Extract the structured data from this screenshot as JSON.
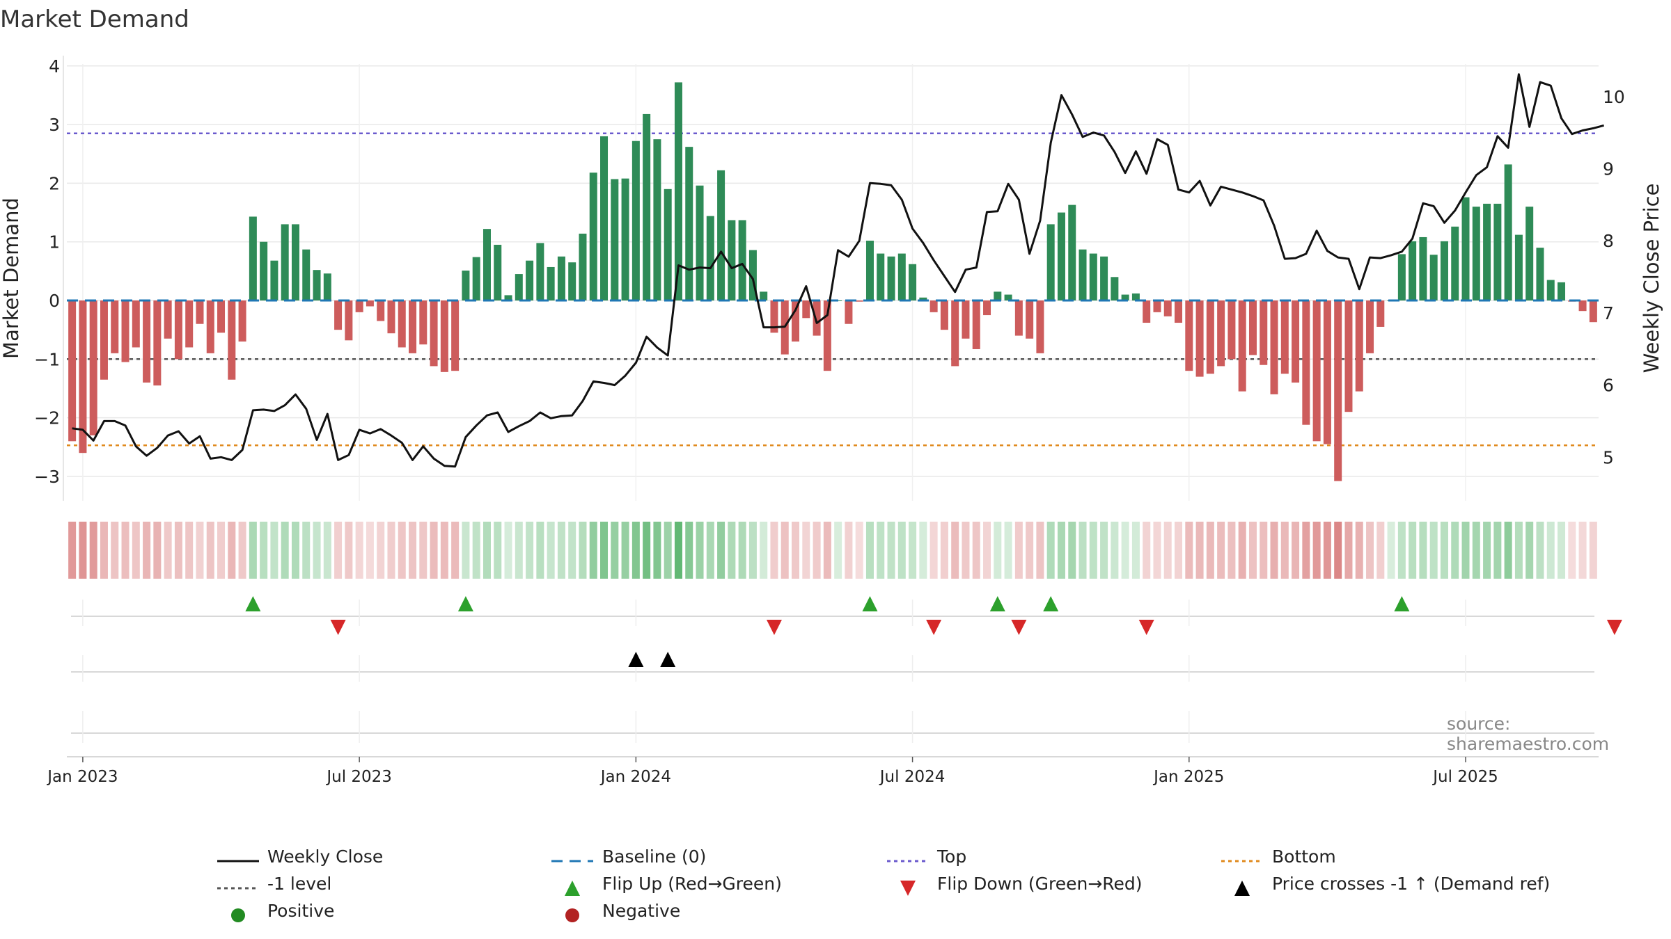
{
  "title": "Market Demand",
  "source": "source: sharemaestro.com",
  "colors": {
    "positive": "#2e8b57",
    "negative": "#cd5c5c",
    "close": "#111111",
    "baseline": "#1f77b4",
    "top": "#6a5acd",
    "bottom": "#e08a1e",
    "minus1": "#555555",
    "flip_up": "#2ca02c",
    "flip_down": "#d62728",
    "cross": "#000000",
    "pos_marker": "#228b22",
    "neg_marker": "#b22222"
  },
  "chart_data": {
    "type": "bar",
    "title": "Market Demand",
    "ylabel": "Market Demand",
    "y2label": "Weekly Close Price",
    "ylim": [
      -3.4,
      4.0
    ],
    "y2lim": [
      4.5,
      10.5
    ],
    "yticks": [
      -3,
      -2,
      -1,
      0,
      1,
      2,
      3,
      4
    ],
    "y2ticks": [
      5,
      6,
      7,
      8,
      9,
      10
    ],
    "xticks": [
      {
        "label": "Jan 2023",
        "week": 1
      },
      {
        "label": "Jul 2023",
        "week": 27
      },
      {
        "label": "Jan 2024",
        "week": 53
      },
      {
        "label": "Jul 2024",
        "week": 79
      },
      {
        "label": "Jan 2025",
        "week": 105
      },
      {
        "label": "Jul 2025",
        "week": 131
      }
    ],
    "levels": {
      "baseline": 0,
      "minus1": -1,
      "top": 2.85,
      "bottom": -2.47
    },
    "demand": [
      -2.4,
      -2.6,
      -2.3,
      -1.35,
      -0.9,
      -1.05,
      -0.8,
      -1.4,
      -1.45,
      -0.65,
      -1.0,
      -0.8,
      -0.4,
      -0.9,
      -0.55,
      -1.35,
      -0.7,
      1.43,
      1.0,
      0.68,
      1.3,
      1.3,
      0.87,
      0.52,
      0.46,
      -0.5,
      -0.68,
      -0.2,
      -0.1,
      -0.35,
      -0.56,
      -0.8,
      -0.9,
      -0.75,
      -1.12,
      -1.22,
      -1.2,
      0.51,
      0.74,
      1.22,
      0.95,
      0.09,
      0.45,
      0.68,
      0.98,
      0.57,
      0.75,
      0.65,
      1.14,
      2.18,
      2.8,
      2.07,
      2.08,
      2.72,
      3.18,
      2.75,
      1.9,
      3.72,
      2.62,
      1.96,
      1.44,
      2.22,
      1.37,
      1.37,
      0.86,
      0.15,
      -0.55,
      -0.92,
      -0.7,
      -0.3,
      -0.6,
      -1.2,
      0.0,
      -0.4,
      -0.02,
      1.02,
      0.8,
      0.75,
      0.8,
      0.62,
      0.05,
      -0.2,
      -0.5,
      -1.12,
      -0.65,
      -0.83,
      -0.25,
      0.15,
      0.1,
      -0.6,
      -0.65,
      -0.9,
      1.3,
      1.5,
      1.63,
      0.87,
      0.8,
      0.75,
      0.4,
      0.1,
      0.12,
      -0.38,
      -0.2,
      -0.27,
      -0.38,
      -1.2,
      -1.3,
      -1.25,
      -1.12,
      -1.0,
      -1.55,
      -0.93,
      -1.1,
      -1.6,
      -1.25,
      -1.4,
      -2.12,
      -2.4,
      -2.45,
      -3.08,
      -1.9,
      -1.55,
      -0.9,
      -0.45,
      0.0,
      0.79,
      1.01,
      1.08,
      0.78,
      1.01,
      1.26,
      1.76,
      1.6,
      1.65,
      1.65,
      2.32,
      1.12,
      1.6,
      0.9,
      0.35,
      0.31,
      -0.02,
      -0.18,
      -0.37
    ],
    "close": [
      5.4,
      5.38,
      5.23,
      5.5,
      5.5,
      5.44,
      5.15,
      5.02,
      5.13,
      5.3,
      5.36,
      5.19,
      5.29,
      4.98,
      5.0,
      4.96,
      5.1,
      5.65,
      5.66,
      5.64,
      5.72,
      5.87,
      5.67,
      5.24,
      5.6,
      4.96,
      5.03,
      5.38,
      5.33,
      5.39,
      5.3,
      5.2,
      4.96,
      5.15,
      4.98,
      4.88,
      4.87,
      5.28,
      5.44,
      5.58,
      5.62,
      5.35,
      5.43,
      5.5,
      5.62,
      5.54,
      5.57,
      5.58,
      5.78,
      6.05,
      6.03,
      6.0,
      6.13,
      6.31,
      6.67,
      6.52,
      6.41,
      7.66,
      7.6,
      7.63,
      7.62,
      7.85,
      7.62,
      7.68,
      7.47,
      6.8,
      6.8,
      6.81,
      7.04,
      7.37,
      6.86,
      6.97,
      7.87,
      7.78,
      8.0,
      8.8,
      8.79,
      8.77,
      8.57,
      8.17,
      7.97,
      7.73,
      7.51,
      7.29,
      7.6,
      7.63,
      8.4,
      8.41,
      8.79,
      8.57,
      7.82,
      8.28,
      9.36,
      10.02,
      9.75,
      9.44,
      9.5,
      9.46,
      9.23,
      8.94,
      9.24,
      8.93,
      9.41,
      9.33,
      8.71,
      8.67,
      8.83,
      8.49,
      8.75,
      8.71,
      8.67,
      8.62,
      8.56,
      8.21,
      7.75,
      7.76,
      7.82,
      8.14,
      7.86,
      7.77,
      7.75,
      7.33,
      7.77,
      7.76,
      7.8,
      7.85,
      8.03,
      8.52,
      8.48,
      8.25,
      8.42,
      8.67,
      8.91,
      9.02,
      9.45,
      9.29,
      10.31,
      9.58,
      10.2,
      10.15,
      9.7,
      9.48,
      9.53,
      9.56,
      9.6
    ],
    "flip_up_weeks": [
      17,
      37,
      75,
      87,
      92,
      125
    ],
    "flip_down_weeks": [
      25,
      66,
      81,
      89,
      101,
      145
    ],
    "cross_weeks": [
      53,
      56
    ]
  },
  "legend": [
    {
      "key": "close",
      "label": "Weekly Close"
    },
    {
      "key": "baseline",
      "label": "Baseline (0)"
    },
    {
      "key": "top",
      "label": "Top"
    },
    {
      "key": "bottom",
      "label": "Bottom"
    },
    {
      "key": "minus1",
      "label": "-1 level"
    },
    {
      "key": "flip_up",
      "label": "Flip Up (Red→Green)"
    },
    {
      "key": "flip_down",
      "label": "Flip Down (Green→Red)"
    },
    {
      "key": "cross",
      "label": "Price crosses -1 ↑ (Demand ref)"
    },
    {
      "key": "pos_marker",
      "label": "Positive"
    },
    {
      "key": "neg_marker",
      "label": "Negative"
    }
  ]
}
